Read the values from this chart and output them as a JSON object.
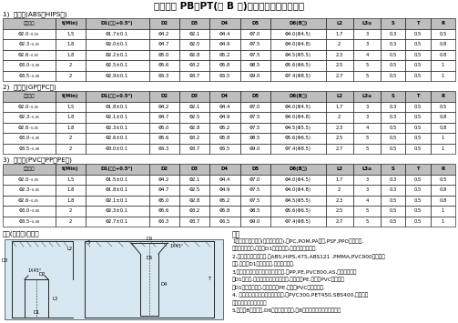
{
  "title": "塑料件中 PB、PT(及 B 头)螺丝之螺柱及沉头孔尺",
  "section1_label": "1)  硬胶类(ABS、HIPS等)",
  "section2_label": "2)  硬胶类(GP、PC等)",
  "section3_label": "3)  软胶类(PVC、PP、PE等)",
  "headers": [
    "螺丝直径",
    "t(Min)",
    "D1(板模+0.5°)",
    "D2",
    "D3",
    "D4",
    "D5",
    "D6(B头)",
    "L2",
    "L3≥",
    "S",
    "T",
    "R"
  ],
  "section1_rows": [
    [
      "Φ2.0₋₀.₀₅",
      "1.5",
      "Φ1.7±0.1",
      "Φ4.2",
      "Φ2.1",
      "Φ4.4",
      "Φ7.0",
      "Φ4.0(Φ4.5)",
      "1.7",
      "3",
      "0.3",
      "0.5",
      "0.5"
    ],
    [
      "Φ2.3₋₀.₀₅",
      "1.8",
      "Φ2.0±0.1",
      "Φ4.7",
      "Φ2.5",
      "Φ4.9",
      "Φ7.5",
      "Φ4.0(Φ4.8)",
      "2",
      "3",
      "0.3",
      "0.5",
      "0.8"
    ],
    [
      "Φ2.6₋₀.₀₅",
      "1.8",
      "Φ2.2±0.1",
      "Φ5.0",
      "Φ2.8",
      "Φ5.2",
      "Φ7.5",
      "Φ4.5(Φ5.5)",
      "2.3",
      "4",
      "0.5",
      "0.5",
      "0.8"
    ],
    [
      "Φ3.0₋₀.₀₈",
      "2",
      "Φ2.5±0.1",
      "Φ5.6",
      "Φ3.2",
      "Φ5.8",
      "Φ8.5",
      "Φ5.6(Φ6.5)",
      "2.5",
      "5",
      "0.5",
      "0.5",
      "1"
    ],
    [
      "Φ3.5₋₀.₀₈",
      "2",
      "Φ2.9±0.1",
      "Φ6.3",
      "Φ3.7",
      "Φ6.5",
      "Φ9.0",
      "Φ7.4(Φ8.5)",
      "2.7",
      "5",
      "0.5",
      "0.5",
      "1"
    ]
  ],
  "section2_rows": [
    [
      "Φ2.0₋₀.₀₅",
      "1.5",
      "Φ1.8±0.1",
      "Φ4.2",
      "Φ2.1",
      "Φ4.4",
      "Φ7.0",
      "Φ4.0(Φ4.5)",
      "1.7",
      "3",
      "0.3",
      "0.5",
      "0.5"
    ],
    [
      "Φ2.3₋₀.₀₅",
      "1.8",
      "Φ2.1±0.1",
      "Φ4.7",
      "Φ2.5",
      "Φ4.9",
      "Φ7.5",
      "Φ4.0(Φ4.8)",
      "2",
      "3",
      "0.3",
      "0.5",
      "0.8"
    ],
    [
      "Φ2.6₋₀.₀₅",
      "1.8",
      "Φ2.3±0.1",
      "Φ5.0",
      "Φ2.8",
      "Φ5.2",
      "Φ7.5",
      "Φ4.5(Φ5.5)",
      "2.3",
      "4",
      "0.5",
      "0.5",
      "0.8"
    ],
    [
      "Φ3.0₋₀.₀₈",
      "2",
      "Φ2.6±0.1",
      "Φ5.6",
      "Φ3.2",
      "Φ5.8",
      "Φ8.5",
      "Φ5.6(Φ6.5)",
      "2.5",
      "5",
      "0.5",
      "0.5",
      "1"
    ],
    [
      "Φ3.5₋₀.₀₈",
      "2",
      "Φ3.0±0.1",
      "Φ6.3",
      "Φ3.7",
      "Φ6.5",
      "Φ9.0",
      "Φ7.4(Φ8.5)",
      "2.7",
      "5",
      "0.5",
      "0.5",
      "1"
    ]
  ],
  "section3_rows": [
    [
      "Φ2.0₋₀.₀₅",
      "1.5",
      "Φ1.5±0.1",
      "Φ4.2",
      "Φ2.1",
      "Φ4.4",
      "Φ7.0",
      "Φ4.0(Φ4.5)",
      "1.7",
      "3",
      "0.3",
      "0.5",
      "0.5"
    ],
    [
      "Φ2.3₋₀.₀₅",
      "1.8",
      "Φ1.8±0.1",
      "Φ4.7",
      "Φ2.5",
      "Φ4.9",
      "Φ7.5",
      "Φ4.0(Φ4.8)",
      "2",
      "3",
      "0.3",
      "0.5",
      "0.8"
    ],
    [
      "Φ2.6₋₀.₀₅",
      "1.8",
      "Φ2.1±0.1",
      "Φ5.0",
      "Φ2.8",
      "Φ5.2",
      "Φ7.5",
      "Φ4.5(Φ5.5)",
      "2.3",
      "4",
      "0.5",
      "0.5",
      "0.8"
    ],
    [
      "Φ3.0₋₀.₀₈",
      "2",
      "Φ2.3±0.1",
      "Φ5.6",
      "Φ3.2",
      "Φ5.8",
      "Φ8.5",
      "Φ5.6(Φ6.5)",
      "2.5",
      "5",
      "0.5",
      "0.5",
      "1"
    ],
    [
      "Φ3.5₋₀.₀₈",
      "2",
      "Φ2.7±0.1",
      "Φ6.3",
      "Φ3.7",
      "Φ6.5",
      "Φ9.0",
      "Φ7.4(Φ8.5)",
      "2.7",
      "5",
      "0.5",
      "0.5",
      "1"
    ]
  ],
  "col_widths_rel": [
    38,
    22,
    46,
    22,
    22,
    22,
    22,
    40,
    20,
    20,
    18,
    18,
    18
  ],
  "footer_label": "附图(非比例)如下：",
  "notes_title": "备注",
  "notes": [
    "1，当采用工程塑料(或加玻璃纤维),如PC,POM,PA加纤,PSF,PPO等强度大,",
    "强度高的材料时,螺丝孔D1取较大尺寸,以免收螺丝太困难.",
    "2,当采用普通硬质塑料,如ABS,HIPS,475,ABS121 ,PMMA,PVC900较高的材",
    "料时,螺丝孔D1取较小尺寸,以防螺丝滑牙.",
    "3,当采用有一定硬度的软软塑料材料,如PP,PE,PVC800,AS,等应采用软胶",
    "类D1孔尺寸,应根据硬度的高低来确定,如高密度PE,高级数PVC等用软胶",
    "类D1孔尺寸较大值,反之低密度PE,低级数PVC时用较小值.",
    "4, 有些太软的材料不适用螺丝结存,如PVC300,PET450,SBS400,而采用胶",
    "水或其它特殊方式来联接",
    "5,当使用B头螺丝时,D6采用括号内尺寸,但B头螺丝在塑料玩具中应用较"
  ],
  "bg_color": "#ffffff"
}
